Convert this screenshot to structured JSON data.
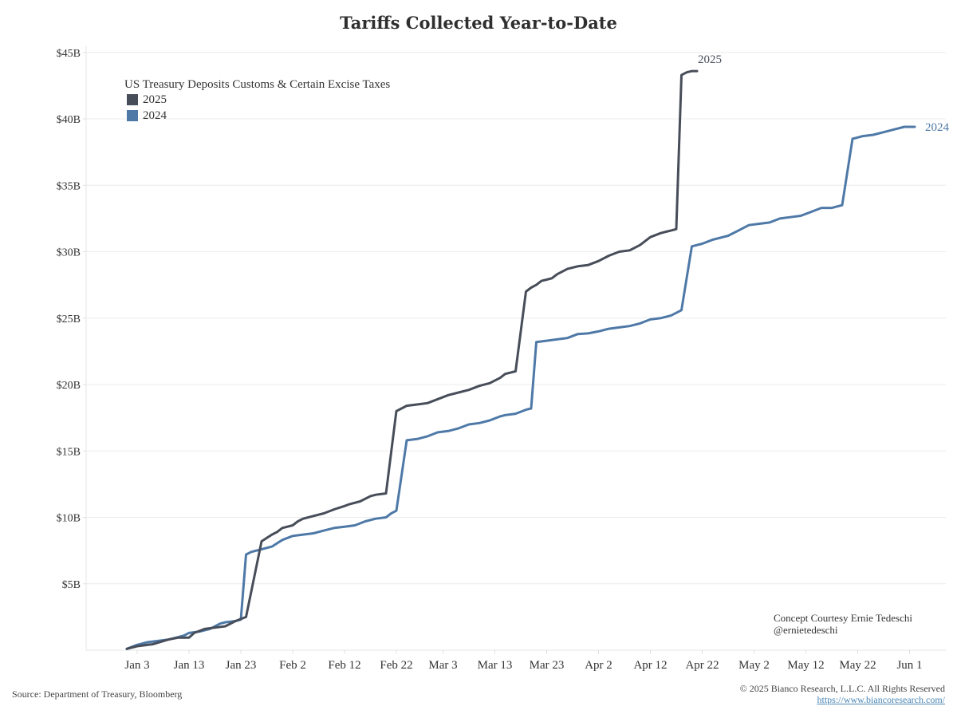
{
  "chart_data": {
    "type": "line",
    "title": "Tariffs Collected Year-to-Date",
    "legend_title": "US Treasury Deposits Customs & Certain Excise Taxes",
    "legend_position": "top-left",
    "xlabel": "",
    "ylabel": "",
    "x_unit": "days since Jan 1",
    "xlim": [
      -4,
      157
    ],
    "ylim": [
      0,
      45
    ],
    "grid": true,
    "y_ticks": [
      5,
      10,
      15,
      20,
      25,
      30,
      35,
      40,
      45
    ],
    "y_tick_labels": [
      "$5B",
      "$10B",
      "$15B",
      "$20B",
      "$25B",
      "$30B",
      "$35B",
      "$40B",
      "$45B"
    ],
    "x_ticks": [
      2,
      12,
      22,
      32,
      42,
      52,
      61,
      71,
      81,
      91,
      101,
      111,
      121,
      131,
      141,
      151
    ],
    "x_tick_labels": [
      "Jan 3",
      "Jan 13",
      "Jan 23",
      "Feb 2",
      "Feb 12",
      "Feb 22",
      "Mar 3",
      "Mar 13",
      "Mar 23",
      "Apr 2",
      "Apr 12",
      "Apr 22",
      "May 2",
      "May 12",
      "May 22",
      "Jun 1"
    ],
    "series": [
      {
        "name": "2025",
        "color": "#474d59",
        "end_label": "2025",
        "x": [
          0,
          2,
          5,
          8,
          10,
          12,
          13,
          15,
          17,
          19,
          21,
          23,
          26,
          28,
          29,
          30,
          32,
          33,
          34,
          36,
          38,
          40,
          42,
          43,
          45,
          47,
          48,
          50,
          52,
          53,
          54,
          56,
          58,
          60,
          62,
          64,
          66,
          68,
          70,
          72,
          73,
          75,
          77,
          78,
          79,
          80,
          81,
          82,
          83,
          85,
          87,
          89,
          91,
          93,
          95,
          97,
          99,
          101,
          103,
          104,
          105,
          106,
          107,
          108,
          109,
          110
        ],
        "values": [
          0.1,
          0.3,
          0.45,
          0.8,
          0.95,
          0.95,
          1.3,
          1.6,
          1.7,
          1.8,
          2.2,
          2.5,
          8.2,
          8.7,
          8.9,
          9.2,
          9.4,
          9.7,
          9.9,
          10.1,
          10.3,
          10.6,
          10.85,
          11.0,
          11.2,
          11.6,
          11.7,
          11.8,
          18.0,
          18.2,
          18.4,
          18.5,
          18.6,
          18.9,
          19.2,
          19.4,
          19.6,
          19.9,
          20.1,
          20.5,
          20.8,
          21.0,
          27.0,
          27.3,
          27.5,
          27.8,
          27.9,
          28.0,
          28.3,
          28.7,
          28.9,
          29.0,
          29.3,
          29.7,
          30.0,
          30.1,
          30.5,
          31.1,
          31.4,
          31.5,
          31.6,
          31.7,
          43.3,
          43.5,
          43.6,
          43.6
        ]
      },
      {
        "name": "2024",
        "color": "#4e79a7",
        "end_label": "2024",
        "x": [
          0,
          2,
          4,
          6,
          8,
          10,
          11,
          12,
          14,
          16,
          18,
          19,
          20,
          21,
          22,
          23,
          24,
          26,
          28,
          30,
          32,
          34,
          36,
          38,
          40,
          42,
          44,
          46,
          48,
          50,
          51,
          52,
          54,
          56,
          58,
          60,
          62,
          64,
          66,
          68,
          70,
          72,
          73,
          75,
          77,
          78,
          79,
          81,
          83,
          85,
          87,
          89,
          91,
          93,
          95,
          97,
          99,
          101,
          103,
          105,
          107,
          109,
          111,
          113,
          115,
          116,
          118,
          120,
          122,
          124,
          126,
          128,
          130,
          132,
          134,
          136,
          138,
          140,
          141,
          142,
          144,
          146,
          148,
          150,
          152
        ],
        "values": [
          0.1,
          0.4,
          0.6,
          0.7,
          0.8,
          1.0,
          1.1,
          1.3,
          1.4,
          1.6,
          2.0,
          2.1,
          2.15,
          2.2,
          2.3,
          7.2,
          7.4,
          7.6,
          7.8,
          8.3,
          8.6,
          8.7,
          8.8,
          9.0,
          9.2,
          9.3,
          9.4,
          9.7,
          9.9,
          10.0,
          10.3,
          10.5,
          15.8,
          15.9,
          16.1,
          16.4,
          16.5,
          16.7,
          17.0,
          17.1,
          17.3,
          17.6,
          17.7,
          17.8,
          18.1,
          18.2,
          23.2,
          23.3,
          23.4,
          23.5,
          23.8,
          23.85,
          24.0,
          24.2,
          24.3,
          24.4,
          24.6,
          24.9,
          25.0,
          25.2,
          25.6,
          30.4,
          30.6,
          30.9,
          31.1,
          31.2,
          31.6,
          32.0,
          32.1,
          32.2,
          32.5,
          32.6,
          32.7,
          33.0,
          33.3,
          33.3,
          33.5,
          38.5,
          38.6,
          38.7,
          38.8,
          39.0,
          39.2,
          39.4,
          39.4
        ]
      }
    ]
  },
  "annotations": {
    "credit_line1": "Concept Courtesy Ernie Tedeschi",
    "credit_line2": "@ernietedeschi",
    "source": "Source: Department of Treasury, Bloomberg",
    "copyright": "© 2025 Bianco Research, L.L.C. All Rights Reserved",
    "url": "https://www.biancoresearch.com/"
  }
}
